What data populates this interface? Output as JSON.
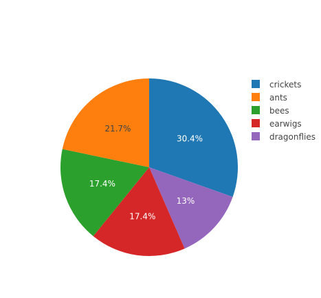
{
  "chart_data": {
    "type": "pie",
    "title": "",
    "categories": [
      "crickets",
      "ants",
      "bees",
      "earwigs",
      "dragonflies"
    ],
    "values": [
      30.4,
      21.7,
      17.4,
      17.4,
      13
    ],
    "labels": [
      "30.4%",
      "21.7%",
      "17.4%",
      "17.4%",
      "13%"
    ],
    "slice_order": [
      "crickets",
      "dragonflies",
      "earwigs",
      "bees",
      "ants"
    ],
    "direction": "clockwise",
    "start_angle": "12 o'clock",
    "colors": {
      "crickets": "#1f77b4",
      "ants": "#ff7f0e",
      "bees": "#2ca02c",
      "earwigs": "#d62728",
      "dragonflies": "#9467bd"
    },
    "label_colors": {
      "crickets": "#ffffff",
      "ants": "#444444",
      "bees": "#ffffff",
      "earwigs": "#ffffff",
      "dragonflies": "#ffffff"
    },
    "legend_placement": "right"
  }
}
